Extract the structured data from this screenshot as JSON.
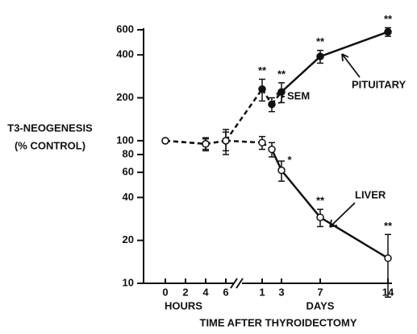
{
  "chart_data": {
    "type": "line",
    "y_label_lines": [
      "T3-NEOGENESIS",
      "(% CONTROL)"
    ],
    "x_title": "TIME AFTER THYROIDECTOMY",
    "log_y": true,
    "ylim": [
      10,
      600
    ],
    "yticks": [
      10,
      20,
      40,
      60,
      80,
      100,
      200,
      400,
      600
    ],
    "x_axes": [
      {
        "label": "HOURS",
        "xlim": [
          0,
          6
        ],
        "xticks": [
          0,
          2,
          4,
          6
        ],
        "x": [
          0,
          4,
          6
        ]
      },
      {
        "label": "DAYS",
        "xlim": [
          0,
          14
        ],
        "xticks": [
          1,
          3,
          7,
          14
        ],
        "x": [
          1,
          2,
          3,
          7,
          14
        ]
      }
    ],
    "series": [
      {
        "name": "PITUITARY",
        "marker": "filled",
        "color": "#111111",
        "values": [
          [
            100,
            95,
            100
          ],
          [
            230,
            180,
            220,
            390,
            580
          ]
        ],
        "errors": [
          [
            3,
            10,
            15
          ],
          [
            40,
            20,
            35,
            40,
            40
          ]
        ],
        "stars": [
          [
            null,
            null,
            null
          ],
          [
            "**",
            "**",
            "**",
            "**",
            "**"
          ]
        ],
        "line_styles": [
          "dashed",
          "dashed",
          "dashed",
          "dashed",
          "dashed",
          "solid",
          "solid"
        ]
      },
      {
        "name": "LIVER",
        "marker": "open",
        "color": "#111111",
        "values": [
          [
            100,
            95,
            100
          ],
          [
            97,
            87,
            62,
            29,
            15
          ]
        ],
        "errors": [
          [
            3,
            8,
            20
          ],
          [
            10,
            10,
            10,
            4,
            7
          ]
        ],
        "stars": [
          [
            null,
            null,
            null
          ],
          [
            null,
            null,
            "*",
            "**",
            "**"
          ]
        ],
        "line_styles": [
          "dashed",
          "dashed",
          "dashed",
          "dashed",
          "solid",
          "solid",
          "solid"
        ]
      }
    ],
    "error_label": "SEM"
  }
}
